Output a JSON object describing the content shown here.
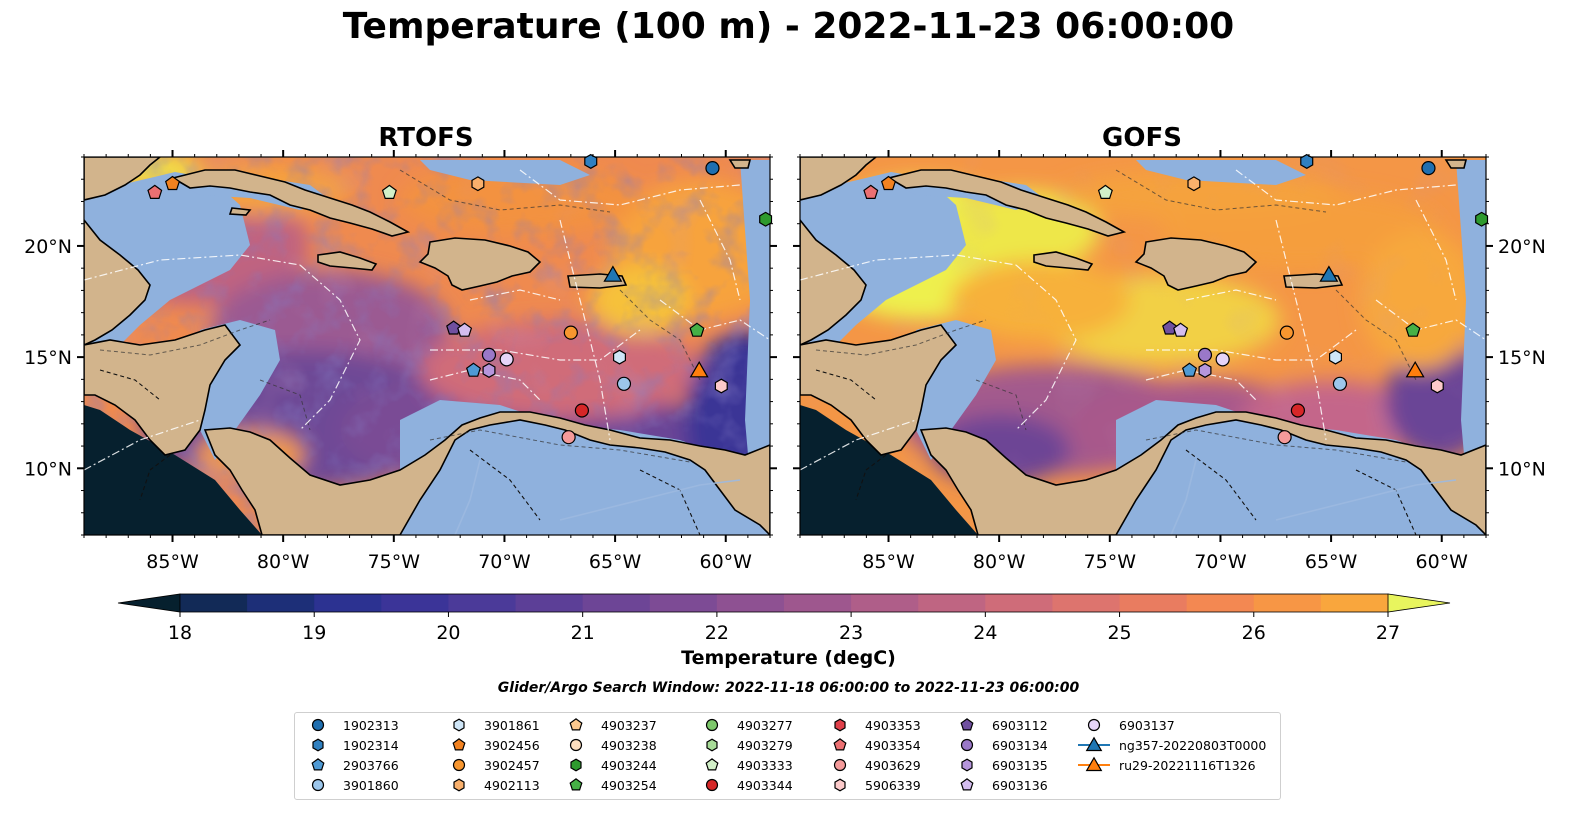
{
  "title": "Temperature (100 m) - 2022-11-23 06:00:00",
  "colorbar_label": "Temperature (degC)",
  "search_window": "Glider/Argo Search Window: 2022-11-18 06:00:00 to 2022-11-23 06:00:00",
  "chart_data": [
    {
      "type": "heatmap",
      "title": "RTOFS",
      "variable": "Temperature (100 m)",
      "units": "degC",
      "xlim": [
        -89,
        -58
      ],
      "ylim": [
        7,
        24
      ],
      "xticks": [
        -85,
        -80,
        -75,
        -70,
        -65,
        -60
      ],
      "xtick_labels": [
        "85°W",
        "80°W",
        "75°W",
        "70°W",
        "65°W",
        "60°W"
      ],
      "yticks": [
        10,
        15,
        20
      ],
      "ytick_labels": [
        "10°N",
        "15°N",
        "20°N"
      ],
      "ytick_side": "left"
    },
    {
      "type": "heatmap",
      "title": "GOFS",
      "variable": "Temperature (100 m)",
      "units": "degC",
      "xlim": [
        -89,
        -58
      ],
      "ylim": [
        7,
        24
      ],
      "xticks": [
        -85,
        -80,
        -75,
        -70,
        -65,
        -60
      ],
      "xtick_labels": [
        "85°W",
        "80°W",
        "75°W",
        "70°W",
        "65°W",
        "60°W"
      ],
      "yticks": [
        10,
        15,
        20
      ],
      "ytick_labels": [
        "10°N",
        "15°N",
        "20°N"
      ],
      "ytick_side": "right"
    }
  ],
  "colorbar": {
    "vmin": 18,
    "vmax": 27,
    "step": 0.5,
    "ticks": [
      18,
      19,
      20,
      21,
      22,
      23,
      24,
      25,
      26,
      27
    ],
    "extend": "both",
    "colors": [
      "#06202e",
      "#122a57",
      "#1d2f78",
      "#2c3291",
      "#3b3498",
      "#4b3a99",
      "#5c3f97",
      "#6d4596",
      "#7d4b95",
      "#8e5192",
      "#9e578e",
      "#af5e89",
      "#bf6582",
      "#cf6c79",
      "#dd746e",
      "#e97c60",
      "#f38852",
      "#f79645",
      "#f9a63d",
      "#f9b73a",
      "#f5c93d",
      "#eedc46"
    ],
    "under_color": "#06202e",
    "over_color": "#e8f55e"
  },
  "land_color": "#d2b48c",
  "shallow_color": "#8fb1dd",
  "floats": [
    {
      "id": "1902313",
      "lon": -60.6,
      "lat": 23.5
    },
    {
      "id": "1902314",
      "lon": -66.1,
      "lat": 23.8
    },
    {
      "id": "4903244",
      "lon": -58.2,
      "lat": 21.2
    },
    {
      "id": "3902456",
      "lon": -85.0,
      "lat": 22.8
    },
    {
      "id": "4903354",
      "lon": -85.8,
      "lat": 22.4
    },
    {
      "id": "4903333",
      "lon": -75.2,
      "lat": 22.4
    },
    {
      "id": "4902113",
      "lon": -71.2,
      "lat": 22.8
    },
    {
      "id": "3902457",
      "lon": -67.0,
      "lat": 16.1
    },
    {
      "id": "6903112",
      "lon": -72.3,
      "lat": 16.3
    },
    {
      "id": "6903136",
      "lon": -71.8,
      "lat": 16.2
    },
    {
      "id": "6903134",
      "lon": -70.7,
      "lat": 15.1
    },
    {
      "id": "6903137",
      "lon": -69.9,
      "lat": 14.9
    },
    {
      "id": "6903135",
      "lon": -70.7,
      "lat": 14.4
    },
    {
      "id": "2903766",
      "lon": -71.4,
      "lat": 14.4
    },
    {
      "id": "3901861",
      "lon": -64.8,
      "lat": 15.0
    },
    {
      "id": "3901860",
      "lon": -64.6,
      "lat": 13.8
    },
    {
      "id": "5906339",
      "lon": -60.2,
      "lat": 13.7
    },
    {
      "id": "4903344",
      "lon": -66.5,
      "lat": 12.6
    },
    {
      "id": "4903629",
      "lon": -67.1,
      "lat": 11.4
    },
    {
      "id": "4903254",
      "lon": -61.3,
      "lat": 16.2
    }
  ],
  "gliders": [
    {
      "id": "ng357-20220803T0000",
      "lon": -65.1,
      "lat": 18.7
    },
    {
      "id": "ru29-20221116T1326",
      "lon": -61.2,
      "lat": 14.4
    }
  ],
  "legend": [
    {
      "label": "1902313",
      "marker": "circle",
      "color": "#1f6fb0"
    },
    {
      "label": "1902314",
      "marker": "hexagon",
      "color": "#2f80c0"
    },
    {
      "label": "2903766",
      "marker": "pentagon",
      "color": "#4f9ad4"
    },
    {
      "label": "3901860",
      "marker": "circle",
      "color": "#9cc6eb"
    },
    {
      "label": "3901861",
      "marker": "hexagon",
      "color": "#cfe6f8"
    },
    {
      "label": "3902456",
      "marker": "pentagon",
      "color": "#f28220"
    },
    {
      "label": "3902457",
      "marker": "circle",
      "color": "#f7962f"
    },
    {
      "label": "4902113",
      "marker": "hexagon",
      "color": "#f9b06c"
    },
    {
      "label": "4903237",
      "marker": "pentagon",
      "color": "#fbc98f"
    },
    {
      "label": "4903238",
      "marker": "circle",
      "color": "#fddfc0"
    },
    {
      "label": "4903244",
      "marker": "hexagon",
      "color": "#2e9a2e"
    },
    {
      "label": "4903254",
      "marker": "pentagon",
      "color": "#46b046"
    },
    {
      "label": "4903277",
      "marker": "circle",
      "color": "#7dc86b"
    },
    {
      "label": "4903279",
      "marker": "hexagon",
      "color": "#a8dc98"
    },
    {
      "label": "4903333",
      "marker": "pentagon",
      "color": "#d2f0c8"
    },
    {
      "label": "4903344",
      "marker": "circle",
      "color": "#d62728"
    },
    {
      "label": "4903353",
      "marker": "hexagon",
      "color": "#e0404a"
    },
    {
      "label": "4903354",
      "marker": "pentagon",
      "color": "#ec7072"
    },
    {
      "label": "4903629",
      "marker": "circle",
      "color": "#f49a9a"
    },
    {
      "label": "5906339",
      "marker": "hexagon",
      "color": "#fccaca"
    },
    {
      "label": "6903112",
      "marker": "pentagon",
      "color": "#7050a0"
    },
    {
      "label": "6903134",
      "marker": "circle",
      "color": "#9a78c8"
    },
    {
      "label": "6903135",
      "marker": "hexagon",
      "color": "#b696dc"
    },
    {
      "label": "6903136",
      "marker": "pentagon",
      "color": "#d4bdef"
    },
    {
      "label": "6903137",
      "marker": "circle",
      "color": "#e6d4f8"
    },
    {
      "label": "ng357-20220803T0000",
      "marker": "triangle-line",
      "color": "#1f77b4"
    },
    {
      "label": "ru29-20221116T1326",
      "marker": "triangle-line",
      "color": "#ff7f0e"
    }
  ]
}
